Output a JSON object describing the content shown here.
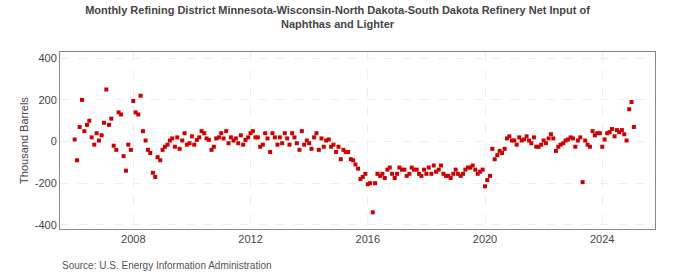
{
  "chart_data": {
    "type": "scatter",
    "title": "Monthly Refining District Minnesota-Wisconsin-North Dakota-South Dakota Refinery Net Input of\nNaphthas and Lighter",
    "ylabel": "Thousand Barrels",
    "annotations": [
      "Source: U.S. Energy Information Administration"
    ],
    "color": "#cc0000",
    "marker": "square",
    "grid": true,
    "xlim": [
      2005.5,
      2025.8
    ],
    "ylim": [
      -420,
      430
    ],
    "xticks": [
      2008,
      2012,
      2016,
      2020,
      2024
    ],
    "yticks": [
      -400,
      -200,
      0,
      200,
      400
    ],
    "x": [
      2006.0,
      2006.08,
      2006.17,
      2006.25,
      2006.33,
      2006.42,
      2006.5,
      2006.58,
      2006.67,
      2006.75,
      2006.83,
      2006.92,
      2007.0,
      2007.08,
      2007.17,
      2007.25,
      2007.33,
      2007.42,
      2007.5,
      2007.58,
      2007.67,
      2007.75,
      2007.83,
      2007.92,
      2008.0,
      2008.08,
      2008.17,
      2008.25,
      2008.33,
      2008.42,
      2008.5,
      2008.58,
      2008.67,
      2008.75,
      2008.83,
      2008.92,
      2009.0,
      2009.08,
      2009.17,
      2009.25,
      2009.33,
      2009.42,
      2009.5,
      2009.58,
      2009.67,
      2009.75,
      2009.83,
      2009.92,
      2010.0,
      2010.08,
      2010.17,
      2010.25,
      2010.33,
      2010.42,
      2010.5,
      2010.58,
      2010.67,
      2010.75,
      2010.83,
      2010.92,
      2011.0,
      2011.08,
      2011.17,
      2011.25,
      2011.33,
      2011.42,
      2011.5,
      2011.58,
      2011.67,
      2011.75,
      2011.83,
      2011.92,
      2012.0,
      2012.08,
      2012.17,
      2012.25,
      2012.33,
      2012.42,
      2012.5,
      2012.58,
      2012.67,
      2012.75,
      2012.83,
      2012.92,
      2013.0,
      2013.08,
      2013.17,
      2013.25,
      2013.33,
      2013.42,
      2013.5,
      2013.58,
      2013.67,
      2013.75,
      2013.83,
      2013.92,
      2014.0,
      2014.08,
      2014.17,
      2014.25,
      2014.33,
      2014.42,
      2014.5,
      2014.58,
      2014.67,
      2014.75,
      2014.83,
      2014.92,
      2015.0,
      2015.08,
      2015.17,
      2015.25,
      2015.33,
      2015.42,
      2015.5,
      2015.58,
      2015.67,
      2015.75,
      2015.83,
      2015.92,
      2016.0,
      2016.08,
      2016.17,
      2016.25,
      2016.33,
      2016.42,
      2016.5,
      2016.58,
      2016.67,
      2016.75,
      2016.83,
      2016.92,
      2017.0,
      2017.08,
      2017.17,
      2017.25,
      2017.33,
      2017.42,
      2017.5,
      2017.58,
      2017.67,
      2017.75,
      2017.83,
      2017.92,
      2018.0,
      2018.08,
      2018.17,
      2018.25,
      2018.33,
      2018.42,
      2018.5,
      2018.58,
      2018.67,
      2018.75,
      2018.83,
      2018.92,
      2019.0,
      2019.08,
      2019.17,
      2019.25,
      2019.33,
      2019.42,
      2019.5,
      2019.58,
      2019.67,
      2019.75,
      2019.83,
      2019.92,
      2020.0,
      2020.08,
      2020.17,
      2020.25,
      2020.33,
      2020.42,
      2020.5,
      2020.58,
      2020.67,
      2020.75,
      2020.83,
      2020.92,
      2021.0,
      2021.08,
      2021.17,
      2021.25,
      2021.33,
      2021.42,
      2021.5,
      2021.58,
      2021.67,
      2021.75,
      2021.83,
      2021.92,
      2022.0,
      2022.08,
      2022.17,
      2022.25,
      2022.33,
      2022.42,
      2022.5,
      2022.58,
      2022.67,
      2022.75,
      2022.83,
      2022.92,
      2023.0,
      2023.08,
      2023.17,
      2023.25,
      2023.33,
      2023.42,
      2023.5,
      2023.58,
      2023.67,
      2023.75,
      2023.83,
      2023.92,
      2024.0,
      2024.08,
      2024.17,
      2024.25,
      2024.33,
      2024.42,
      2024.5,
      2024.58,
      2024.67,
      2024.75,
      2024.83,
      2024.92,
      2025.0,
      2025.08
    ],
    "values": [
      10,
      -90,
      70,
      200,
      50,
      80,
      100,
      20,
      -15,
      40,
      5,
      30,
      90,
      250,
      80,
      110,
      -20,
      -40,
      140,
      130,
      -70,
      -140,
      -15,
      -40,
      195,
      140,
      130,
      220,
      50,
      5,
      -40,
      -55,
      -150,
      -170,
      -75,
      -90,
      -40,
      -25,
      -15,
      5,
      15,
      -25,
      20,
      -35,
      5,
      40,
      -15,
      -8,
      25,
      -15,
      8,
      20,
      50,
      40,
      15,
      8,
      -40,
      -25,
      15,
      20,
      40,
      15,
      50,
      -8,
      20,
      5,
      15,
      -8,
      30,
      -15,
      8,
      20,
      40,
      50,
      20,
      20,
      -25,
      -15,
      40,
      15,
      -50,
      40,
      20,
      -15,
      20,
      -8,
      40,
      15,
      -15,
      40,
      20,
      -8,
      -40,
      50,
      -15,
      5,
      -8,
      -35,
      20,
      40,
      -40,
      15,
      -25,
      5,
      10,
      -25,
      -15,
      -50,
      -25,
      -85,
      -40,
      -50,
      -50,
      -85,
      -90,
      -110,
      -130,
      -180,
      -170,
      -155,
      -205,
      -200,
      -340,
      -200,
      -155,
      -165,
      -155,
      -175,
      -135,
      -125,
      -155,
      -175,
      -155,
      -125,
      -135,
      -135,
      -165,
      -155,
      -125,
      -135,
      -135,
      -155,
      -165,
      -135,
      -155,
      -125,
      -155,
      -115,
      -145,
      -135,
      -115,
      -155,
      -165,
      -165,
      -175,
      -155,
      -135,
      -155,
      -165,
      -155,
      -135,
      -125,
      -125,
      -115,
      -135,
      -155,
      -145,
      -135,
      -215,
      -185,
      -165,
      -35,
      -85,
      -65,
      -45,
      -55,
      -35,
      15,
      25,
      5,
      5,
      -15,
      20,
      5,
      10,
      25,
      5,
      -8,
      20,
      -25,
      -25,
      -15,
      5,
      -8,
      15,
      35,
      15,
      -45,
      -25,
      -15,
      -8,
      5,
      10,
      20,
      15,
      -25,
      5,
      20,
      -195,
      5,
      -15,
      -25,
      50,
      30,
      40,
      40,
      -25,
      10,
      40,
      45,
      60,
      25,
      55,
      45,
      55,
      35,
      5,
      155,
      190,
      70
    ]
  }
}
